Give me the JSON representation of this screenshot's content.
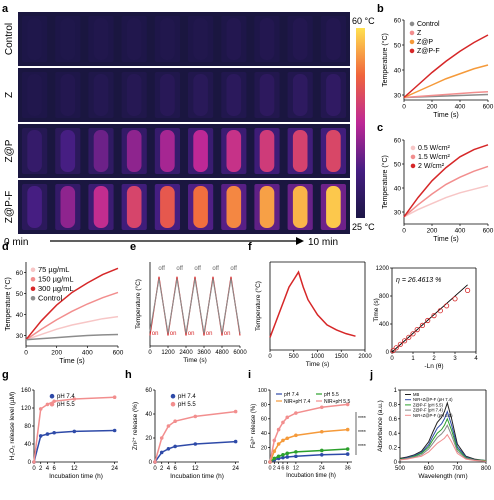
{
  "colors": {
    "control": "#8c8c8c",
    "z": "#f28e8e",
    "zp": "#f59a3a",
    "zpf": "#d62728",
    "light_pink": "#f7c6c6",
    "blue": "#2e4aa8",
    "green": "#2ca02c"
  },
  "panels": {
    "a": {
      "letter": "a",
      "rows": [
        "Control",
        "Z",
        "Z@P",
        "Z@P-F"
      ],
      "colorbar_top": "60 °C",
      "colorbar_bottom": "25 °C",
      "time_start": "0 min",
      "time_end": "10 min",
      "intensity": [
        [
          0.02,
          0.02,
          0.03,
          0.03,
          0.03,
          0.03,
          0.04,
          0.04,
          0.04,
          0.04
        ],
        [
          0.03,
          0.04,
          0.05,
          0.06,
          0.07,
          0.08,
          0.09,
          0.1,
          0.11,
          0.12
        ],
        [
          0.15,
          0.25,
          0.33,
          0.4,
          0.45,
          0.5,
          0.54,
          0.58,
          0.61,
          0.63
        ],
        [
          0.25,
          0.4,
          0.52,
          0.62,
          0.7,
          0.77,
          0.82,
          0.87,
          0.91,
          0.95
        ]
      ]
    },
    "b": {
      "letter": "b"
    },
    "c": {
      "letter": "c"
    },
    "d": {
      "letter": "d"
    },
    "e": {
      "letter": "e"
    },
    "f": {
      "letter": "f",
      "annotation": "η = 26.4613 %"
    },
    "g": {
      "letter": "g"
    },
    "h": {
      "letter": "h"
    },
    "i": {
      "letter": "i"
    },
    "j": {
      "letter": "j"
    }
  },
  "chart_data": [
    {
      "id": "b",
      "type": "line",
      "xlabel": "Time (s)",
      "ylabel": "Temperature (°C)",
      "xlim": [
        0,
        600
      ],
      "ylim": [
        28,
        60
      ],
      "xticks": [
        0,
        200,
        400,
        600
      ],
      "yticks": [
        30,
        40,
        50,
        60
      ],
      "legend": "top-left",
      "x": [
        0,
        100,
        200,
        300,
        400,
        500,
        600
      ],
      "series": [
        {
          "name": "Control",
          "color": "#8c8c8c",
          "values": [
            29,
            29.2,
            29.4,
            29.6,
            29.8,
            30,
            30.2
          ]
        },
        {
          "name": "Z",
          "color": "#f28e8e",
          "values": [
            29,
            29.4,
            29.8,
            30.2,
            30.6,
            31,
            31.3
          ]
        },
        {
          "name": "Z@P",
          "color": "#f59a3a",
          "values": [
            29,
            31.5,
            34,
            36.5,
            38.5,
            40.5,
            42
          ]
        },
        {
          "name": "Z@P-F",
          "color": "#d62728",
          "values": [
            29,
            34,
            39,
            43.5,
            47.5,
            51,
            54
          ]
        }
      ]
    },
    {
      "id": "c",
      "type": "line",
      "xlabel": "Time (s)",
      "ylabel": "Temperature (°C)",
      "xlim": [
        0,
        600
      ],
      "ylim": [
        25,
        60
      ],
      "xticks": [
        0,
        200,
        400,
        600
      ],
      "yticks": [
        30,
        40,
        50,
        60
      ],
      "legend": "top-left",
      "x": [
        0,
        100,
        200,
        300,
        400,
        500,
        600
      ],
      "series": [
        {
          "name": "0.5 W/cm²",
          "color": "#f7c6c6",
          "values": [
            28,
            31,
            33.5,
            36,
            38,
            39.5,
            41
          ]
        },
        {
          "name": "1.5 W/cm²",
          "color": "#f28e8e",
          "values": [
            28,
            33,
            37.5,
            41.5,
            44.5,
            47,
            49
          ]
        },
        {
          "name": "2 W/cm²",
          "color": "#d62728",
          "values": [
            28,
            36,
            43,
            48.5,
            53,
            56,
            58
          ]
        }
      ]
    },
    {
      "id": "d",
      "type": "line",
      "xlabel": "Time (s)",
      "ylabel": "Temperature (°C)",
      "xlim": [
        0,
        600
      ],
      "ylim": [
        25,
        65
      ],
      "xticks": [
        0,
        200,
        400,
        600
      ],
      "yticks": [
        30,
        40,
        50,
        60
      ],
      "legend": "top-left",
      "x": [
        0,
        100,
        200,
        300,
        400,
        500,
        600
      ],
      "series": [
        {
          "name": "75 µg/mL",
          "color": "#f7c6c6",
          "values": [
            28,
            30.5,
            33,
            35,
            36.5,
            38,
            39
          ]
        },
        {
          "name": "150 µg/mL",
          "color": "#f28e8e",
          "values": [
            28,
            33,
            37.5,
            41.5,
            45,
            48,
            50.5
          ]
        },
        {
          "name": "300 µg/mL",
          "color": "#d62728",
          "values": [
            28,
            37,
            44.5,
            50.5,
            55,
            59,
            62
          ]
        },
        {
          "name": "Control",
          "color": "#8c8c8c",
          "values": [
            28,
            28.5,
            29,
            29.5,
            30,
            30.3,
            30.5
          ]
        }
      ]
    },
    {
      "id": "e",
      "type": "line",
      "xlabel": "Time (s)",
      "ylabel": "Temperature (°C)",
      "xlim": [
        0,
        6000
      ],
      "ylim": [
        25,
        65
      ],
      "xticks": [
        0,
        1200,
        2400,
        3600,
        4800,
        6000
      ],
      "on_labels": [
        "on",
        "on",
        "on",
        "on",
        "on"
      ],
      "off_labels": [
        "off",
        "off",
        "off",
        "off",
        "off"
      ],
      "x": [
        0,
        600,
        1200,
        1800,
        2400,
        3000,
        3600,
        4200,
        4800,
        5400,
        6000
      ],
      "series": [
        {
          "name": "",
          "color": "#d62728",
          "values": [
            30,
            58,
            30,
            58,
            30,
            58,
            30,
            58,
            30,
            58,
            30
          ]
        },
        {
          "name": "",
          "color": "#8c8c8c",
          "values": [
            32,
            57,
            31,
            57,
            31,
            57,
            31,
            57,
            31,
            57,
            31
          ]
        }
      ]
    },
    {
      "id": "f1",
      "type": "line",
      "xlabel": "Time (s)",
      "ylabel": "Temperature (°C)",
      "xlim": [
        0,
        2000
      ],
      "ylim": [
        25,
        60
      ],
      "xticks": [
        0,
        500,
        1000,
        1500,
        2000
      ],
      "x": [
        0,
        100,
        200,
        300,
        400,
        500,
        600,
        700,
        800,
        900,
        1000,
        1200,
        1400,
        1600,
        1800
      ],
      "series": [
        {
          "name": "",
          "color": "#d62728",
          "values": [
            30,
            35,
            40,
            45,
            50,
            53,
            56,
            50,
            45,
            42,
            39,
            35,
            33,
            31.5,
            30.5
          ]
        }
      ]
    },
    {
      "id": "f2",
      "type": "scatter",
      "xlabel": "-Ln (θ)",
      "ylabel": "Time (s)",
      "xlim": [
        0,
        4
      ],
      "ylim": [
        0,
        1200
      ],
      "xticks": [
        0,
        1,
        2,
        3,
        4
      ],
      "yticks": [
        0,
        400,
        800,
        1200
      ],
      "x": [
        0.05,
        0.2,
        0.4,
        0.6,
        0.8,
        1.0,
        1.2,
        1.45,
        1.7,
        2.0,
        2.3,
        2.6,
        3.0,
        3.6
      ],
      "values": [
        20,
        60,
        110,
        160,
        210,
        260,
        320,
        380,
        450,
        520,
        590,
        660,
        760,
        880
      ],
      "fit": {
        "x": [
          0,
          3.6
        ],
        "values": [
          0,
          960
        ]
      }
    },
    {
      "id": "g",
      "type": "line",
      "xlabel": "Incubation time (h)",
      "ylabel": "H₂O₂ release level (µM)",
      "xlim": [
        0,
        25
      ],
      "ylim": [
        0,
        160
      ],
      "xticks": [
        0,
        2,
        4,
        6,
        12,
        24
      ],
      "yticks": [
        0,
        40,
        80,
        120,
        160
      ],
      "legend": "top-left",
      "x": [
        0,
        2,
        4,
        6,
        12,
        24
      ],
      "series": [
        {
          "name": "pH 7.4",
          "color": "#2e4aa8",
          "values": [
            0,
            58,
            62,
            65,
            68,
            70
          ]
        },
        {
          "name": "pH 5.5",
          "color": "#f28e8e",
          "values": [
            0,
            118,
            128,
            135,
            140,
            144
          ]
        }
      ]
    },
    {
      "id": "h",
      "type": "line",
      "xlabel": "Incubation time (h)",
      "ylabel": "Zn²⁺ release (%)",
      "xlim": [
        0,
        25
      ],
      "ylim": [
        0,
        60
      ],
      "xticks": [
        0,
        2,
        4,
        6,
        12,
        24
      ],
      "yticks": [
        0,
        20,
        40,
        60
      ],
      "legend": "top-left",
      "x": [
        0,
        2,
        4,
        6,
        12,
        24
      ],
      "series": [
        {
          "name": "pH 7.4",
          "color": "#2e4aa8",
          "values": [
            0,
            8,
            11,
            13,
            15,
            17
          ]
        },
        {
          "name": "pH 5.5",
          "color": "#f28e8e",
          "values": [
            0,
            20,
            30,
            34,
            38,
            42
          ]
        }
      ]
    },
    {
      "id": "i",
      "type": "line",
      "xlabel": "Incubation time (h)",
      "ylabel": "Fe³⁺ release (%)",
      "xlim": [
        0,
        38
      ],
      "ylim": [
        0,
        100
      ],
      "xticks": [
        0,
        2,
        4,
        6,
        8,
        12,
        24,
        36
      ],
      "yticks": [
        0,
        20,
        40,
        60,
        80,
        100
      ],
      "legend": "top-left",
      "x": [
        0,
        2,
        4,
        6,
        8,
        12,
        24,
        36
      ],
      "series": [
        {
          "name": "pH 7.4",
          "color": "#2e4aa8",
          "values": [
            0,
            3,
            5,
            6,
            7,
            8,
            10,
            11
          ]
        },
        {
          "name": "pH 5.5",
          "color": "#2ca02c",
          "values": [
            0,
            5,
            8,
            10,
            12,
            14,
            16,
            18
          ]
        },
        {
          "name": "NIR+pH 7.4",
          "color": "#f59a3a",
          "values": [
            0,
            15,
            25,
            30,
            33,
            37,
            42,
            45
          ]
        },
        {
          "name": "NIR+pH 5.5",
          "color": "#f28e8e",
          "values": [
            0,
            30,
            45,
            55,
            62,
            68,
            76,
            80
          ]
        }
      ],
      "significance": [
        "****",
        "****",
        "****"
      ]
    },
    {
      "id": "j",
      "type": "line",
      "xlabel": "Wavelength (nm)",
      "ylabel": "Absorbance (a.u.)",
      "xlim": [
        500,
        800
      ],
      "ylim": [
        0,
        1.0
      ],
      "xticks": [
        500,
        600,
        700,
        800
      ],
      "yticks": [
        0,
        0.2,
        0.4,
        0.6,
        0.8,
        1.0
      ],
      "legend": "top-left",
      "x": [
        500,
        525,
        550,
        575,
        600,
        615,
        630,
        645,
        655,
        665,
        680,
        700,
        730,
        760,
        800
      ],
      "series": [
        {
          "name": "MB",
          "color": "#222222",
          "values": [
            0.05,
            0.07,
            0.1,
            0.15,
            0.28,
            0.42,
            0.55,
            0.62,
            0.7,
            0.82,
            0.6,
            0.25,
            0.08,
            0.04,
            0.02
          ]
        },
        {
          "name": "NIR+Z@P-F (pH 7.4)",
          "color": "#2e4aa8",
          "values": [
            0.04,
            0.06,
            0.09,
            0.13,
            0.24,
            0.36,
            0.47,
            0.53,
            0.6,
            0.7,
            0.51,
            0.21,
            0.07,
            0.03,
            0.02
          ]
        },
        {
          "name": "Z@P-F (pH 5.5)",
          "color": "#2ca02c",
          "values": [
            0.04,
            0.05,
            0.08,
            0.12,
            0.21,
            0.31,
            0.4,
            0.45,
            0.51,
            0.6,
            0.44,
            0.18,
            0.06,
            0.03,
            0.02
          ]
        },
        {
          "name": "Z@P-F (pH 7.4)",
          "color": "#888888",
          "values": [
            0.03,
            0.05,
            0.07,
            0.1,
            0.18,
            0.26,
            0.34,
            0.39,
            0.44,
            0.51,
            0.37,
            0.15,
            0.05,
            0.03,
            0.01
          ]
        },
        {
          "name": "NIR+Z@P-F (pH 5.5)",
          "color": "#f28e8e",
          "values": [
            0.03,
            0.04,
            0.06,
            0.08,
            0.14,
            0.2,
            0.26,
            0.3,
            0.33,
            0.38,
            0.28,
            0.12,
            0.04,
            0.02,
            0.01
          ]
        }
      ]
    }
  ]
}
